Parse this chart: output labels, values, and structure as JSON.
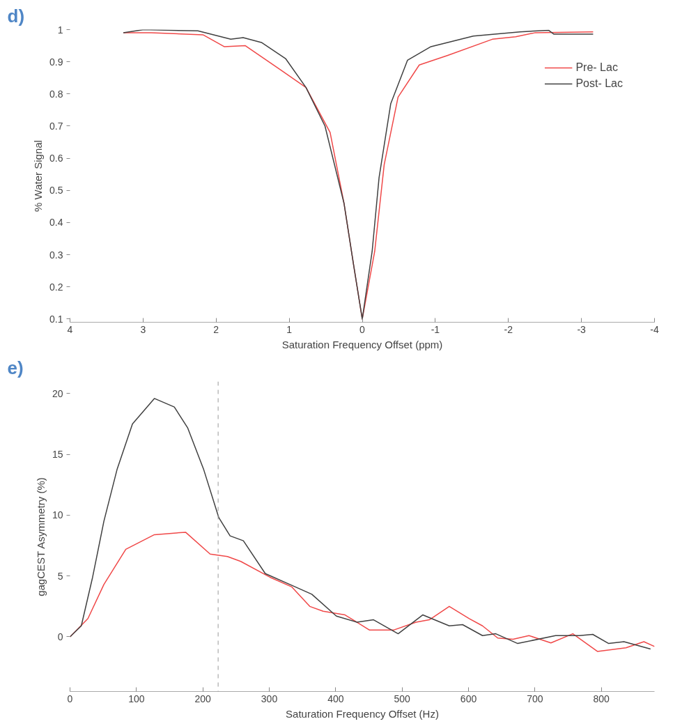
{
  "chart_data": [
    {
      "type": "line",
      "title": "d)",
      "xlabel": "Saturation Frequency Offset (ppm)",
      "ylabel": "% Water Signal",
      "xlim": [
        4,
        -4
      ],
      "xticks": [
        4,
        3,
        2,
        1,
        0,
        -1,
        -2,
        -3,
        -4
      ],
      "ylim": [
        0.09,
        1
      ],
      "yticks": [
        0.1,
        0.2,
        0.3,
        0.4,
        0.5,
        0.6,
        0.7,
        0.8,
        0.9,
        1
      ],
      "grid": false,
      "legend": "top right",
      "line_style": "solid",
      "marker": "none",
      "series": [
        {
          "name": "Pre- Lac",
          "color": "#f04848",
          "x": [
            3.27,
            2.89,
            2.18,
            1.89,
            1.6,
            1.12,
            0.77,
            0.44,
            0.25,
            0.12,
            0.0,
            -0.17,
            -0.3,
            -0.49,
            -0.78,
            -1.17,
            -1.78,
            -2.1,
            -2.36,
            -3.16
          ],
          "values": [
            0.99,
            0.99,
            0.984,
            0.947,
            0.95,
            0.875,
            0.82,
            0.68,
            0.46,
            0.27,
            0.1,
            0.31,
            0.58,
            0.79,
            0.89,
            0.92,
            0.97,
            0.978,
            0.99,
            0.993
          ]
        },
        {
          "name": "Post- Lac",
          "color": "#404040",
          "x": [
            3.27,
            2.99,
            2.25,
            1.8,
            1.63,
            1.38,
            1.05,
            0.77,
            0.51,
            0.25,
            0.12,
            0.0,
            -0.135,
            -0.23,
            -0.39,
            -0.62,
            -0.94,
            -1.52,
            -2.16,
            -2.55,
            -2.62,
            -3.16
          ],
          "values": [
            0.99,
            1.0,
            0.996,
            0.97,
            0.975,
            0.96,
            0.91,
            0.82,
            0.7,
            0.46,
            0.27,
            0.1,
            0.31,
            0.54,
            0.77,
            0.905,
            0.947,
            0.98,
            0.993,
            0.998,
            0.986,
            0.986
          ]
        }
      ]
    },
    {
      "type": "line",
      "title": "e)",
      "xlabel": "Saturation Frequency Offset (Hz)",
      "ylabel": "gagCEST Asymmetry (%)",
      "xlim": [
        0,
        880
      ],
      "xticks": [
        0,
        100,
        200,
        300,
        400,
        500,
        600,
        700,
        800
      ],
      "ylim": [
        -4.5,
        21
      ],
      "yticks": [
        0,
        5,
        10,
        15,
        20
      ],
      "grid": false,
      "legend": false,
      "line_style": "solid",
      "marker": "none",
      "ref_lines": [
        {
          "axis": "x",
          "value": 223,
          "label": null,
          "color": "#999999",
          "line_style": "dashed"
        }
      ],
      "series": [
        {
          "color": "#f04848",
          "x": [
            0,
            27,
            51,
            84,
            127,
            174,
            211,
            237,
            257,
            301,
            334,
            361,
            381,
            414,
            451,
            487,
            521,
            541,
            571,
            601,
            621,
            644,
            667,
            691,
            724,
            757,
            794,
            837,
            864,
            880
          ],
          "values": [
            0,
            1.5,
            4.3,
            7.2,
            8.4,
            8.6,
            6.8,
            6.6,
            6.2,
            4.9,
            4.1,
            2.5,
            2.1,
            1.8,
            0.55,
            0.55,
            1.2,
            1.4,
            2.5,
            1.5,
            0.9,
            -0.1,
            -0.2,
            0.1,
            -0.5,
            0.25,
            -1.2,
            -0.9,
            -0.4,
            -0.8
          ]
        },
        {
          "color": "#404040",
          "x": [
            0,
            17,
            34,
            51,
            71,
            94,
            127,
            157,
            177,
            201,
            224,
            241,
            261,
            294,
            331,
            364,
            401,
            432,
            457,
            494,
            531,
            571,
            591,
            621,
            641,
            674,
            731,
            767,
            787,
            811,
            834,
            874
          ],
          "values": [
            0,
            0.9,
            4.9,
            9.5,
            13.8,
            17.5,
            19.6,
            18.9,
            17.2,
            13.8,
            9.8,
            8.3,
            7.9,
            5.2,
            4.3,
            3.5,
            1.7,
            1.2,
            1.4,
            0.25,
            1.8,
            0.9,
            1.0,
            0.1,
            0.25,
            -0.55,
            0.1,
            0.1,
            0.2,
            -0.55,
            -0.4,
            -1.0
          ]
        }
      ]
    }
  ]
}
